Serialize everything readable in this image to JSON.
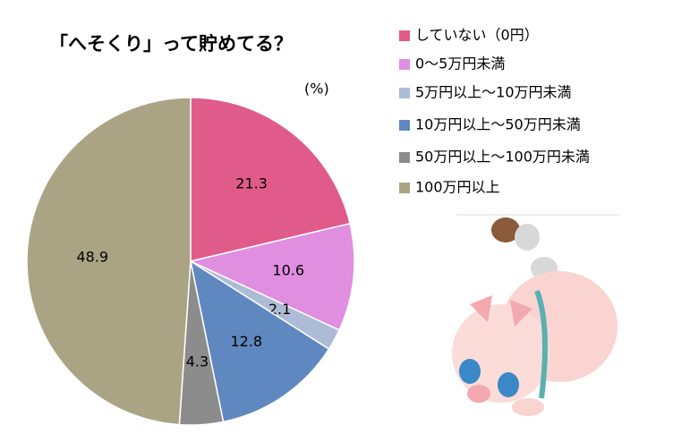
{
  "chart_data": {
    "type": "pie",
    "title": "「へそくり」って貯めてる？",
    "unit_label": "(%)",
    "categories": [
      "していない（0円）",
      "0～5万円未満",
      "5万円以上～10万円未満",
      "10万円以上～50万円未満",
      "50万円以上～100万円未満",
      "100万円以上"
    ],
    "values": [
      21.3,
      10.6,
      2.1,
      12.8,
      4.3,
      48.9
    ],
    "colors": [
      "#e05a8a",
      "#e08ee0",
      "#adbcd6",
      "#6088c0",
      "#8c8c8c",
      "#aba484"
    ]
  }
}
